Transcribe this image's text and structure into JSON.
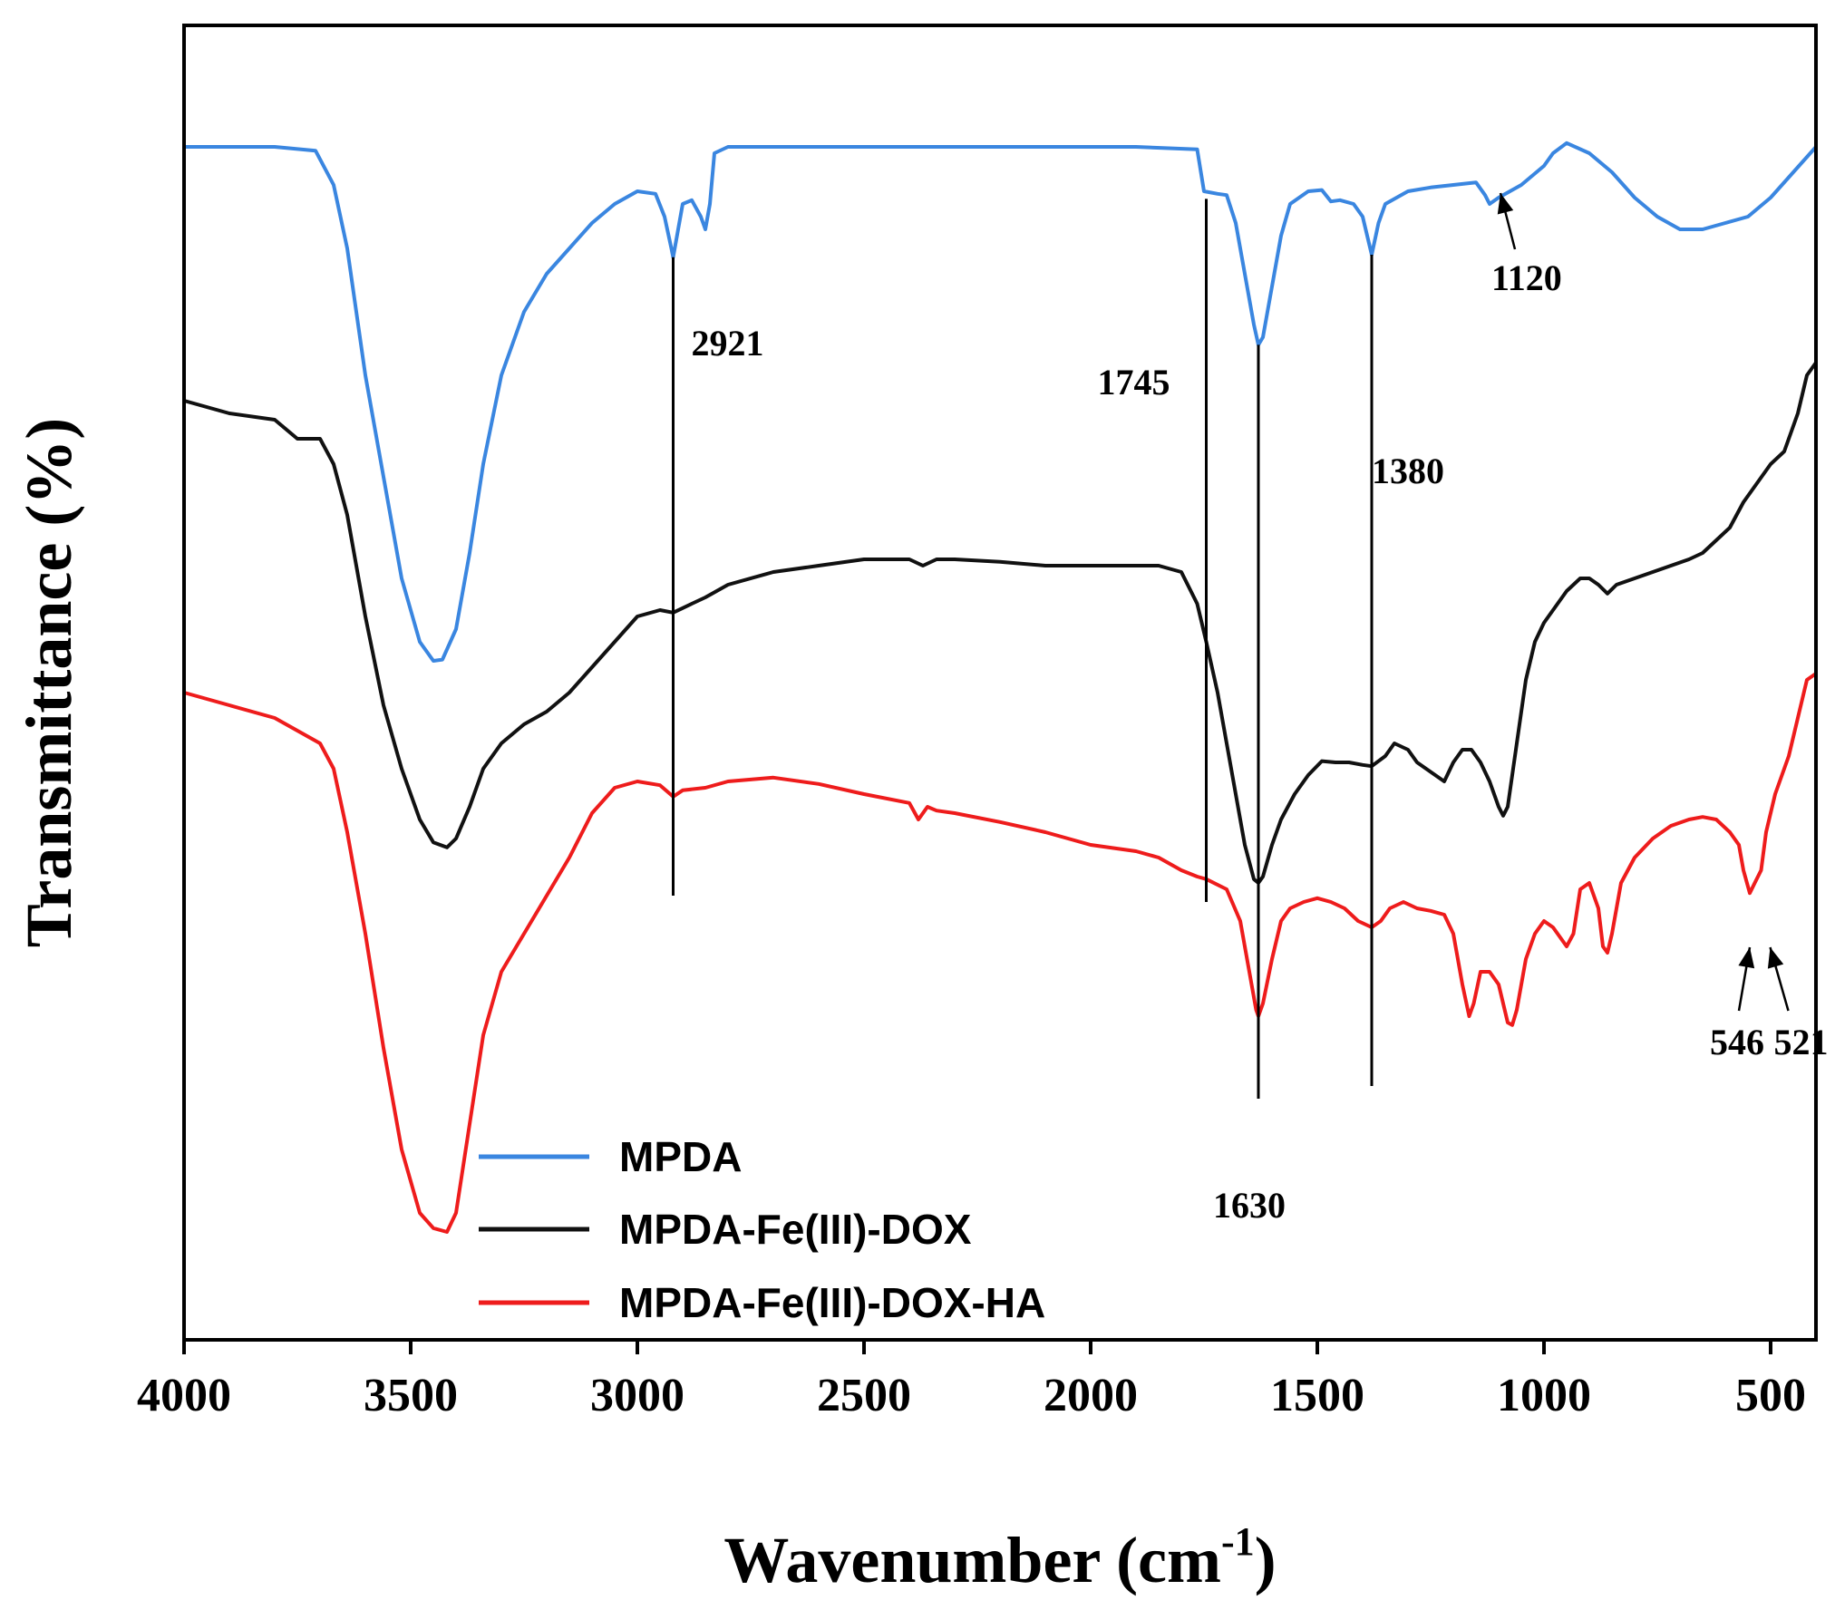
{
  "chart_data": {
    "type": "line",
    "title": "",
    "xlabel": "Wavenumber (cm",
    "xlabel_sup": "-1",
    "xlabel_end": ")",
    "ylabel": "Transmittance (%)",
    "xlim": [
      4000,
      400
    ],
    "ylim": [
      0,
      100
    ],
    "x_ticks": [
      4000,
      3500,
      3000,
      2500,
      2000,
      1500,
      1000,
      500
    ],
    "x_tick_labels": [
      "4000",
      "3500",
      "3000",
      "2500",
      "2000",
      "1500",
      "1000",
      "500"
    ],
    "y_ticks_shown": false,
    "legend_position": "lower-left",
    "series": [
      {
        "name": "MPDA",
        "color": "#3a86e0",
        "points": [
          [
            4000,
            92
          ],
          [
            3800,
            92
          ],
          [
            3710,
            91.7
          ],
          [
            3670,
            89
          ],
          [
            3640,
            84
          ],
          [
            3600,
            74
          ],
          [
            3560,
            66
          ],
          [
            3520,
            58
          ],
          [
            3480,
            53
          ],
          [
            3450,
            51.5
          ],
          [
            3430,
            51.6
          ],
          [
            3400,
            54
          ],
          [
            3370,
            60
          ],
          [
            3340,
            67
          ],
          [
            3300,
            74
          ],
          [
            3250,
            79
          ],
          [
            3200,
            82
          ],
          [
            3150,
            84
          ],
          [
            3100,
            86
          ],
          [
            3050,
            87.5
          ],
          [
            3000,
            88.5
          ],
          [
            2960,
            88.3
          ],
          [
            2940,
            86.5
          ],
          [
            2925,
            84
          ],
          [
            2921,
            83.3
          ],
          [
            2915,
            84.5
          ],
          [
            2900,
            87.5
          ],
          [
            2880,
            87.8
          ],
          [
            2860,
            86.5
          ],
          [
            2850,
            85.5
          ],
          [
            2840,
            87.5
          ],
          [
            2830,
            91.5
          ],
          [
            2800,
            92
          ],
          [
            2500,
            92
          ],
          [
            2200,
            92
          ],
          [
            1900,
            92
          ],
          [
            1765,
            91.8
          ],
          [
            1750,
            88.5
          ],
          [
            1720,
            88.3
          ],
          [
            1700,
            88.2
          ],
          [
            1680,
            86
          ],
          [
            1660,
            82
          ],
          [
            1640,
            78
          ],
          [
            1630,
            76.4
          ],
          [
            1620,
            77
          ],
          [
            1600,
            81
          ],
          [
            1580,
            85
          ],
          [
            1560,
            87.5
          ],
          [
            1520,
            88.5
          ],
          [
            1490,
            88.6
          ],
          [
            1470,
            87.7
          ],
          [
            1450,
            87.8
          ],
          [
            1420,
            87.5
          ],
          [
            1400,
            86.5
          ],
          [
            1380,
            83.5
          ],
          [
            1365,
            86
          ],
          [
            1350,
            87.5
          ],
          [
            1300,
            88.5
          ],
          [
            1250,
            88.8
          ],
          [
            1200,
            89
          ],
          [
            1150,
            89.2
          ],
          [
            1130,
            88.2
          ],
          [
            1120,
            87.5
          ],
          [
            1100,
            88
          ],
          [
            1050,
            89
          ],
          [
            1000,
            90.5
          ],
          [
            980,
            91.5
          ],
          [
            950,
            92.3
          ],
          [
            900,
            91.5
          ],
          [
            850,
            90
          ],
          [
            800,
            88
          ],
          [
            750,
            86.5
          ],
          [
            700,
            85.5
          ],
          [
            650,
            85.5
          ],
          [
            600,
            86
          ],
          [
            550,
            86.5
          ],
          [
            500,
            88
          ],
          [
            450,
            90
          ],
          [
            400,
            92
          ]
        ]
      },
      {
        "name": "MPDA-Fe(III)-DOX",
        "color": "#111111",
        "points": [
          [
            4000,
            72
          ],
          [
            3900,
            71
          ],
          [
            3800,
            70.5
          ],
          [
            3750,
            69
          ],
          [
            3700,
            69
          ],
          [
            3670,
            67
          ],
          [
            3640,
            63
          ],
          [
            3600,
            55
          ],
          [
            3560,
            48
          ],
          [
            3520,
            43
          ],
          [
            3480,
            39
          ],
          [
            3450,
            37.2
          ],
          [
            3420,
            36.8
          ],
          [
            3400,
            37.5
          ],
          [
            3370,
            40
          ],
          [
            3340,
            43
          ],
          [
            3300,
            45
          ],
          [
            3250,
            46.5
          ],
          [
            3200,
            47.5
          ],
          [
            3150,
            49
          ],
          [
            3100,
            51
          ],
          [
            3050,
            53
          ],
          [
            3000,
            55
          ],
          [
            2950,
            55.5
          ],
          [
            2921,
            55.3
          ],
          [
            2880,
            56
          ],
          [
            2850,
            56.5
          ],
          [
            2800,
            57.5
          ],
          [
            2700,
            58.5
          ],
          [
            2600,
            59
          ],
          [
            2500,
            59.5
          ],
          [
            2400,
            59.5
          ],
          [
            2370,
            59
          ],
          [
            2340,
            59.5
          ],
          [
            2300,
            59.5
          ],
          [
            2200,
            59.3
          ],
          [
            2100,
            59
          ],
          [
            2000,
            59
          ],
          [
            1850,
            59
          ],
          [
            1800,
            58.5
          ],
          [
            1765,
            56
          ],
          [
            1745,
            53
          ],
          [
            1720,
            49
          ],
          [
            1700,
            45
          ],
          [
            1680,
            41
          ],
          [
            1660,
            37
          ],
          [
            1640,
            34.3
          ],
          [
            1630,
            34
          ],
          [
            1620,
            34.5
          ],
          [
            1600,
            37
          ],
          [
            1580,
            39
          ],
          [
            1550,
            41
          ],
          [
            1520,
            42.5
          ],
          [
            1490,
            43.6
          ],
          [
            1460,
            43.5
          ],
          [
            1430,
            43.5
          ],
          [
            1400,
            43.3
          ],
          [
            1380,
            43.2
          ],
          [
            1350,
            44
          ],
          [
            1330,
            45
          ],
          [
            1300,
            44.5
          ],
          [
            1280,
            43.5
          ],
          [
            1260,
            43
          ],
          [
            1240,
            42.5
          ],
          [
            1220,
            42
          ],
          [
            1200,
            43.5
          ],
          [
            1180,
            44.5
          ],
          [
            1160,
            44.5
          ],
          [
            1140,
            43.5
          ],
          [
            1120,
            42
          ],
          [
            1100,
            40
          ],
          [
            1090,
            39.3
          ],
          [
            1080,
            40
          ],
          [
            1060,
            45
          ],
          [
            1040,
            50
          ],
          [
            1020,
            53
          ],
          [
            1000,
            54.5
          ],
          [
            980,
            55.5
          ],
          [
            950,
            57
          ],
          [
            920,
            58
          ],
          [
            900,
            58
          ],
          [
            880,
            57.5
          ],
          [
            860,
            56.8
          ],
          [
            840,
            57.5
          ],
          [
            800,
            58
          ],
          [
            760,
            58.5
          ],
          [
            720,
            59
          ],
          [
            680,
            59.5
          ],
          [
            650,
            60
          ],
          [
            620,
            61
          ],
          [
            590,
            62
          ],
          [
            560,
            64
          ],
          [
            530,
            65.5
          ],
          [
            500,
            67
          ],
          [
            470,
            68
          ],
          [
            440,
            71
          ],
          [
            420,
            74
          ],
          [
            400,
            75
          ]
        ]
      },
      {
        "name": "MPDA-Fe(III)-DOX-HA",
        "color": "#ee1c1c",
        "points": [
          [
            4000,
            49
          ],
          [
            3900,
            48
          ],
          [
            3800,
            47
          ],
          [
            3750,
            46
          ],
          [
            3700,
            45
          ],
          [
            3670,
            43
          ],
          [
            3640,
            38
          ],
          [
            3600,
            30
          ],
          [
            3560,
            21
          ],
          [
            3520,
            13
          ],
          [
            3480,
            8
          ],
          [
            3450,
            6.8
          ],
          [
            3420,
            6.5
          ],
          [
            3400,
            8
          ],
          [
            3370,
            15
          ],
          [
            3340,
            22
          ],
          [
            3300,
            27
          ],
          [
            3250,
            30
          ],
          [
            3200,
            33
          ],
          [
            3150,
            36
          ],
          [
            3100,
            39.5
          ],
          [
            3050,
            41.5
          ],
          [
            3000,
            42
          ],
          [
            2950,
            41.7
          ],
          [
            2921,
            40.8
          ],
          [
            2900,
            41.3
          ],
          [
            2850,
            41.5
          ],
          [
            2800,
            42
          ],
          [
            2700,
            42.3
          ],
          [
            2600,
            41.8
          ],
          [
            2500,
            41
          ],
          [
            2400,
            40.3
          ],
          [
            2380,
            39
          ],
          [
            2360,
            40
          ],
          [
            2340,
            39.7
          ],
          [
            2300,
            39.5
          ],
          [
            2200,
            38.8
          ],
          [
            2100,
            38
          ],
          [
            2000,
            37
          ],
          [
            1900,
            36.5
          ],
          [
            1850,
            36
          ],
          [
            1800,
            35
          ],
          [
            1765,
            34.5
          ],
          [
            1745,
            34.3
          ],
          [
            1700,
            33.5
          ],
          [
            1670,
            31
          ],
          [
            1650,
            27
          ],
          [
            1635,
            24
          ],
          [
            1630,
            23.5
          ],
          [
            1620,
            24.5
          ],
          [
            1600,
            28
          ],
          [
            1580,
            31
          ],
          [
            1560,
            32
          ],
          [
            1530,
            32.5
          ],
          [
            1500,
            32.8
          ],
          [
            1470,
            32.5
          ],
          [
            1440,
            32
          ],
          [
            1410,
            31
          ],
          [
            1380,
            30.5
          ],
          [
            1360,
            31
          ],
          [
            1340,
            32
          ],
          [
            1310,
            32.5
          ],
          [
            1280,
            32
          ],
          [
            1250,
            31.8
          ],
          [
            1220,
            31.5
          ],
          [
            1200,
            30
          ],
          [
            1180,
            26
          ],
          [
            1165,
            23.5
          ],
          [
            1155,
            24.5
          ],
          [
            1140,
            27
          ],
          [
            1120,
            27
          ],
          [
            1100,
            26
          ],
          [
            1080,
            23
          ],
          [
            1070,
            22.8
          ],
          [
            1060,
            24
          ],
          [
            1040,
            28
          ],
          [
            1020,
            30
          ],
          [
            1000,
            31
          ],
          [
            980,
            30.5
          ],
          [
            960,
            29.5
          ],
          [
            950,
            29
          ],
          [
            935,
            30
          ],
          [
            920,
            33.5
          ],
          [
            900,
            34
          ],
          [
            880,
            32
          ],
          [
            870,
            29
          ],
          [
            860,
            28.5
          ],
          [
            850,
            30
          ],
          [
            830,
            34
          ],
          [
            800,
            36
          ],
          [
            760,
            37.5
          ],
          [
            720,
            38.5
          ],
          [
            680,
            39
          ],
          [
            650,
            39.2
          ],
          [
            620,
            39
          ],
          [
            590,
            38
          ],
          [
            570,
            37
          ],
          [
            560,
            35
          ],
          [
            546,
            33.2
          ],
          [
            535,
            34
          ],
          [
            521,
            35
          ],
          [
            510,
            38
          ],
          [
            490,
            41
          ],
          [
            460,
            44
          ],
          [
            440,
            47
          ],
          [
            420,
            50
          ],
          [
            400,
            50.5
          ]
        ]
      }
    ],
    "annotations": [
      {
        "label": "2921",
        "x": 2921,
        "y_top": 83.3,
        "y_bottom": 33
      },
      {
        "label": "1745",
        "x": 1745,
        "y_top": 87.9,
        "y_bottom": 32.5
      },
      {
        "label": "1630",
        "x": 1630,
        "y_top": 76.4,
        "y_bottom": 17
      },
      {
        "label": "1380",
        "x": 1380,
        "y_top": 83.5,
        "y_bottom": 18
      },
      {
        "label": "1120",
        "x": 1120,
        "arrow": true
      },
      {
        "label": "546",
        "x": 546,
        "arrow": true
      },
      {
        "label": "521",
        "x": 521,
        "arrow": true
      }
    ]
  }
}
